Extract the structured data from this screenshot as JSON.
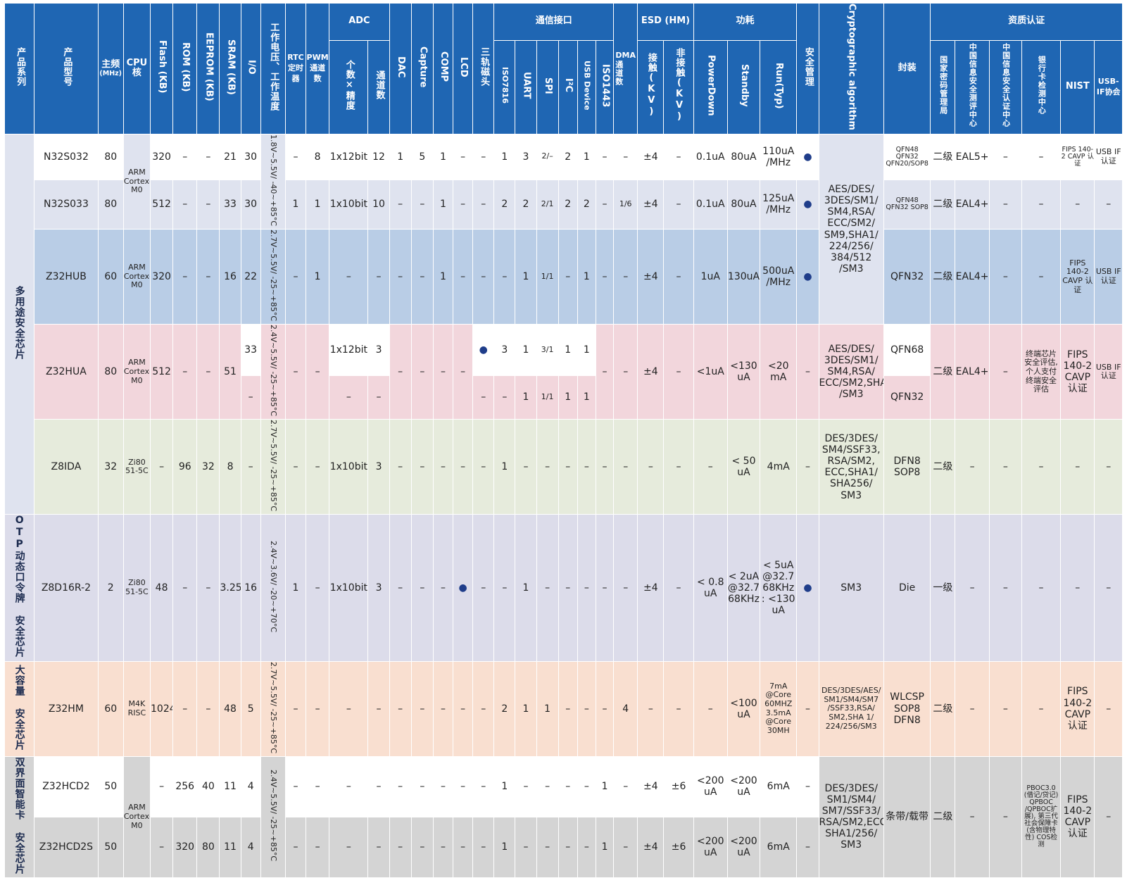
{
  "header": {
    "family": "产品系列",
    "model": "产品型号",
    "freq": "主频",
    "freq_unit": "(MHz)",
    "cpu": "CPU核",
    "flash": "Flash (KB)",
    "rom": "ROM (KB)",
    "eeprom": "EEPROM (KB)",
    "sram": "SRAM (KB)",
    "io": "I/O",
    "voltage": "工作电压、工作温度",
    "rtc": "RTC定时器",
    "pwm": "PWM通道数",
    "adc": "ADC",
    "adc_bits": "个数×精度",
    "adc_ch": "通道数",
    "dac": "DAC",
    "capture": "Capture",
    "comp": "COMP",
    "lcd": "LCD",
    "magnetic": "三轨磁头",
    "comm": "通信接口",
    "iso7816": "ISO7816",
    "uart": "UART",
    "spi": "SPI",
    "i2c": "I²C",
    "usb_dev": "USB Device",
    "iso1443": "ISO1443",
    "dma": "DMA",
    "dma_ch": "通道数",
    "esd": "ESD (HM)",
    "esd_contact": "接触(KV)",
    "esd_noncontact": "非接触(KV)",
    "power": "功耗",
    "powerdown": "PowerDown",
    "standby": "Standby",
    "run": "Run(Typ)",
    "security": "安全管理",
    "crypto": "Cryptographic algorithm",
    "package": "封装",
    "cert": "资质认证",
    "c_nc": "国家密码管理局",
    "c_itsec": "中国信息安全测评中心",
    "c_isccc": "中国信息安全认证中心",
    "c_bank": "银行卡检测中心",
    "c_nist": "NIST",
    "c_usb": "USB-IF协会"
  },
  "groups": {
    "multi": "多用途安全芯片",
    "otp": "OTP动态口令牌 安全芯片",
    "large": "大容量 安全芯片",
    "dual": "双界面智能卡 安全芯片"
  },
  "rows": {
    "n32s032": {
      "model": "N32S032",
      "freq": "80",
      "cpu": "ARM Cortex-M0",
      "flash": "320",
      "rom": "–",
      "eeprom": "–",
      "sram": "21",
      "io": "30",
      "volt": "1.8V~5.5V/ -40~+85°C",
      "rtc": "–",
      "pwm": "8",
      "adc_bits": "1x12bit",
      "adc_ch": "12",
      "dac": "1",
      "capture": "5",
      "comp": "1",
      "lcd": "–",
      "mag": "–",
      "iso7816": "1",
      "uart": "3",
      "spi": "2/–",
      "i2c": "2",
      "usb": "1",
      "iso1443": "–",
      "dma": "–",
      "esd_c": "±4",
      "esd_nc": "–",
      "pd": "0.1uA",
      "sb": "80uA",
      "run": "110uA /MHz",
      "sec": "●",
      "crypto": "AES/DES/ 3DES/SM1/ SM4,RSA/ ECC/SM2/ SM9,SHA1/ 224/256/ 384/512 /SM3",
      "pkg": "QFN48 QFN32 QFN20/SOP8",
      "nc": "二级",
      "itsec": "EAL5+",
      "isccc": "–",
      "bank": "–",
      "nist": "FIPS 140-2 CAVP 认证",
      "usbif": "USB IF认证"
    },
    "n32s033": {
      "model": "N32S033",
      "freq": "80",
      "flash": "512",
      "rom": "–",
      "eeprom": "–",
      "sram": "33",
      "io": "30",
      "rtc": "1",
      "pwm": "1",
      "adc_bits": "1x10bit",
      "adc_ch": "10",
      "dac": "–",
      "capture": "–",
      "comp": "1",
      "lcd": "–",
      "mag": "–",
      "iso7816": "2",
      "uart": "2",
      "spi": "2/1",
      "i2c": "2",
      "usb": "2",
      "iso1443": "–",
      "dma": "1/6",
      "esd_c": "±4",
      "esd_nc": "–",
      "pd": "0.1uA",
      "sb": "80uA",
      "run": "125uA /MHz",
      "sec": "●",
      "pkg": "QFN48 QFN32 SOP8",
      "nc": "二级",
      "itsec": "EAL4+",
      "isccc": "–",
      "bank": "–",
      "nist": "–",
      "usbif": "–"
    },
    "z32hub": {
      "model": "Z32HUB",
      "freq": "60",
      "cpu": "ARM Cortex-M0",
      "flash": "320",
      "rom": "–",
      "eeprom": "–",
      "sram": "16",
      "io": "22",
      "volt": "2.7V~5.5V/ -25~+85°C",
      "rtc": "–",
      "pwm": "1",
      "adc_bits": "–",
      "adc_ch": "–",
      "dac": "–",
      "capture": "–",
      "comp": "1",
      "lcd": "–",
      "mag": "–",
      "iso7816": "–",
      "uart": "1",
      "spi": "1/1",
      "i2c": "–",
      "usb": "1",
      "iso1443": "–",
      "dma": "–",
      "esd_c": "±4",
      "esd_nc": "–",
      "pd": "1uA",
      "sb": "130uA",
      "run": "500uA /MHz",
      "sec": "●",
      "pkg": "QFN32",
      "nc": "二级",
      "itsec": "EAL4+",
      "isccc": "–",
      "bank": "–",
      "nist": "FIPS 140-2 CAVP 认证",
      "usbif": "USB IF认证"
    },
    "z32hua": {
      "model": "Z32HUA",
      "freq": "80",
      "cpu": "ARM Cortex-M0",
      "flash": "512",
      "rom": "–",
      "eeprom": "–",
      "sram": "51",
      "io_a": "33",
      "io_b": "–",
      "volt": "2.4V~5.5V/ -25~+85°C",
      "rtc": "–",
      "pwm": "–",
      "adc_bits_a": "1x12bit",
      "adc_ch_a": "3",
      "adc_bits_b": "–",
      "adc_ch_b": "–",
      "dac": "–",
      "capture": "–",
      "comp": "–",
      "lcd": "–",
      "mag_a": "●",
      "mag_b": "–",
      "iso7816_a": "3",
      "iso7816_b": "–",
      "uart_a": "1",
      "uart_b": "1",
      "spi_a": "3/1",
      "spi_b": "1/1",
      "i2c_a": "1",
      "i2c_b": "1",
      "usb_a": "1",
      "usb_b": "1",
      "iso1443": "–",
      "dma": "–",
      "esd_c": "±4",
      "esd_nc": "–",
      "pd": "<1uA",
      "sb": "<130 uA",
      "run": "<20 mA",
      "sec": "–",
      "crypto": "AES/DES/ 3DES/SM1/ SM4,RSA/ ECC/SM2,SHA /SM3",
      "pkg_a": "QFN68",
      "pkg_b": "QFN32",
      "nc": "二级",
      "itsec": "EAL4+",
      "isccc": "–",
      "bank": "终端芯片 安全评估, 个人支付 终端安全 评估",
      "nist": "FIPS 140-2 CAVP 认证",
      "usbif": "USB IF认证"
    },
    "z8ida": {
      "model": "Z8IDA",
      "freq": "32",
      "cpu": "Zi80 51-5C",
      "flash": "–",
      "rom": "96",
      "eeprom": "32",
      "sram": "8",
      "io": "–",
      "volt": "2.7V~5.5V/ -25~+85°C",
      "rtc": "–",
      "pwm": "–",
      "adc_bits": "1x10bit",
      "adc_ch": "3",
      "dac": "–",
      "capture": "–",
      "comp": "–",
      "lcd": "–",
      "mag": "–",
      "iso7816": "1",
      "uart": "–",
      "spi": "–",
      "i2c": "–",
      "usb": "–",
      "iso1443": "–",
      "dma": "–",
      "esd_c": "–",
      "esd_nc": "–",
      "pd": "–",
      "sb": "< 50 uA",
      "run": "4mA",
      "sec": "–",
      "crypto": "DES/3DES/ SM4/SSF33, RSA/SM2, ECC,SHA1/ SHA256/ SM3",
      "pkg": "DFN8 SOP8",
      "nc": "二级",
      "itsec": "–",
      "isccc": "–",
      "bank": "–",
      "nist": "–",
      "usbif": "–"
    },
    "z8d16r": {
      "model": "Z8D16R-2",
      "freq": "2",
      "cpu": "Zi80 51-5C",
      "flash": "48",
      "rom": "–",
      "eeprom": "–",
      "sram": "3.25",
      "io": "16",
      "volt": "2.4V~3.6V/ -20~+70°C",
      "rtc": "1",
      "pwm": "–",
      "adc_bits": "1x10bit",
      "adc_ch": "3",
      "dac": "–",
      "capture": "–",
      "comp": "–",
      "lcd": "●",
      "mag": "–",
      "iso7816": "–",
      "uart": "1",
      "spi": "–",
      "i2c": "–",
      "usb": "–",
      "iso1443": "–",
      "dma": "–",
      "esd_c": "±4",
      "esd_nc": "–",
      "pd": "< 0.8 uA",
      "sb": "< 2uA @32.7 68KHz",
      "run": "< 5uA @32.7 68KHz : <130 uA",
      "sec": "●",
      "crypto": "SM3",
      "pkg": "Die",
      "nc": "一级",
      "itsec": "–",
      "isccc": "–",
      "bank": "–",
      "nist": "–",
      "usbif": "–"
    },
    "z32hm": {
      "model": "Z32HM",
      "freq": "60",
      "cpu": "M4K RISC",
      "flash": "1024",
      "rom": "–",
      "eeprom": "–",
      "sram": "48",
      "io": "5",
      "volt": "2.7V~5.5V/ -25~+85°C",
      "rtc": "–",
      "pwm": "–",
      "adc_bits": "–",
      "adc_ch": "–",
      "dac": "–",
      "capture": "–",
      "comp": "–",
      "lcd": "–",
      "mag": "–",
      "iso7816": "2",
      "uart": "1",
      "spi": "1",
      "i2c": "–",
      "usb": "–",
      "iso1443": "–",
      "dma": "4",
      "esd_c": "–",
      "esd_nc": "–",
      "pd": "–",
      "sb": "<100 uA",
      "run": "7mA @Core 60MHZ 3.5mA @Core 30MH",
      "sec": "–",
      "crypto": "DES/3DES/AES/ SM1/SM4/SM7 /SSF33,RSA/ SM2,SHA 1/ 224/256/SM3",
      "pkg": "WLCSP SOP8 DFN8",
      "nc": "二级",
      "itsec": "–",
      "isccc": "–",
      "bank": "–",
      "nist": "FIPS 140-2 CAVP 认证",
      "usbif": "–"
    },
    "z32hcd2": {
      "model": "Z32HCD2",
      "freq": "50",
      "cpu": "ARM Cortex-M0",
      "flash": "–",
      "rom": "256",
      "eeprom": "40",
      "sram": "11",
      "io": "4",
      "volt": "2.4V~5.5V/ -25~+85°C",
      "rtc": "–",
      "pwm": "–",
      "adc_bits": "–",
      "adc_ch": "–",
      "dac": "–",
      "capture": "–",
      "comp": "–",
      "lcd": "–",
      "mag": "–",
      "iso7816": "1",
      "uart": "–",
      "spi": "–",
      "i2c": "–",
      "usb": "–",
      "iso1443": "1",
      "dma": "–",
      "esd_c": "±4",
      "esd_nc": "±6",
      "pd": "<200 uA",
      "sb": "<200 uA",
      "run": "6mA",
      "sec": "–",
      "crypto": "DES/3DES/ SM1/SM4/ SM7/SSF33/ RSA/SM2,ECC, SHA1/256/ SM3",
      "pkg": "条带/载带",
      "nc": "二级",
      "itsec": "–",
      "isccc": "–",
      "bank": "PBOC3.0 (借记/贷记) QPBOC /QPBOC扩 展), 第三代 社会保障卡 (含物理特 性) COS检测",
      "nist": "FIPS 140-2 CAVP 认证",
      "usbif": "–"
    },
    "z32hcd2s": {
      "model": "Z32HCD2S",
      "freq": "50",
      "flash": "–",
      "rom": "320",
      "eeprom": "80",
      "sram": "11",
      "io": "4",
      "rtc": "–",
      "pwm": "–",
      "adc_bits": "–",
      "adc_ch": "–",
      "dac": "–",
      "capture": "–",
      "comp": "–",
      "lcd": "–",
      "mag": "–",
      "iso7816": "1",
      "uart": "–",
      "spi": "–",
      "i2c": "–",
      "usb": "–",
      "iso1443": "1",
      "dma": "–",
      "esd_c": "±4",
      "esd_nc": "±6",
      "pd": "<200 uA",
      "sb": "<200 uA",
      "run": "6mA",
      "sec": "–"
    }
  },
  "colors": {
    "header": "#1f66b3",
    "multi_blue": "#dfe3ef",
    "hub_blue": "#b9cde6",
    "pink": "#f2d6dc",
    "green": "#e6ebdc",
    "lavender": "#dcdcea",
    "peach": "#f9dfd0",
    "gray": "#d4d4d4"
  }
}
